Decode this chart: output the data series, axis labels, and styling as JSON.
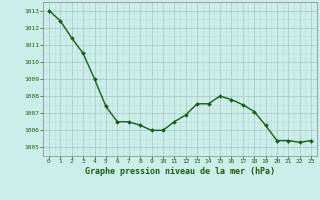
{
  "x": [
    0,
    1,
    2,
    3,
    4,
    5,
    6,
    7,
    8,
    9,
    10,
    11,
    12,
    13,
    14,
    15,
    16,
    17,
    18,
    19,
    20,
    21,
    22,
    23
  ],
  "y": [
    1013.0,
    1012.4,
    1011.4,
    1010.5,
    1009.0,
    1007.4,
    1006.5,
    1006.5,
    1006.3,
    1006.0,
    1006.0,
    1006.5,
    1006.9,
    1007.55,
    1007.55,
    1008.0,
    1007.8,
    1007.5,
    1007.1,
    1006.3,
    1005.4,
    1005.4,
    1005.3,
    1005.4
  ],
  "ylim": [
    1004.5,
    1013.5
  ],
  "xlim": [
    -0.5,
    23.5
  ],
  "yticks": [
    1005,
    1006,
    1007,
    1008,
    1009,
    1010,
    1011,
    1012,
    1013
  ],
  "xticks": [
    0,
    1,
    2,
    3,
    4,
    5,
    6,
    7,
    8,
    9,
    10,
    11,
    12,
    13,
    14,
    15,
    16,
    17,
    18,
    19,
    20,
    21,
    22,
    23
  ],
  "line_color": "#1a5c1a",
  "marker_color": "#1a5c1a",
  "bg_color": "#cceee8",
  "grid_major_color": "#bbdddd",
  "grid_minor_color": "#cceeee",
  "xlabel": "Graphe pression niveau de la mer (hPa)",
  "xlabel_color": "#1a5c1a",
  "tick_color": "#1a5c1a",
  "marker_size": 2.0,
  "line_width": 1.0
}
